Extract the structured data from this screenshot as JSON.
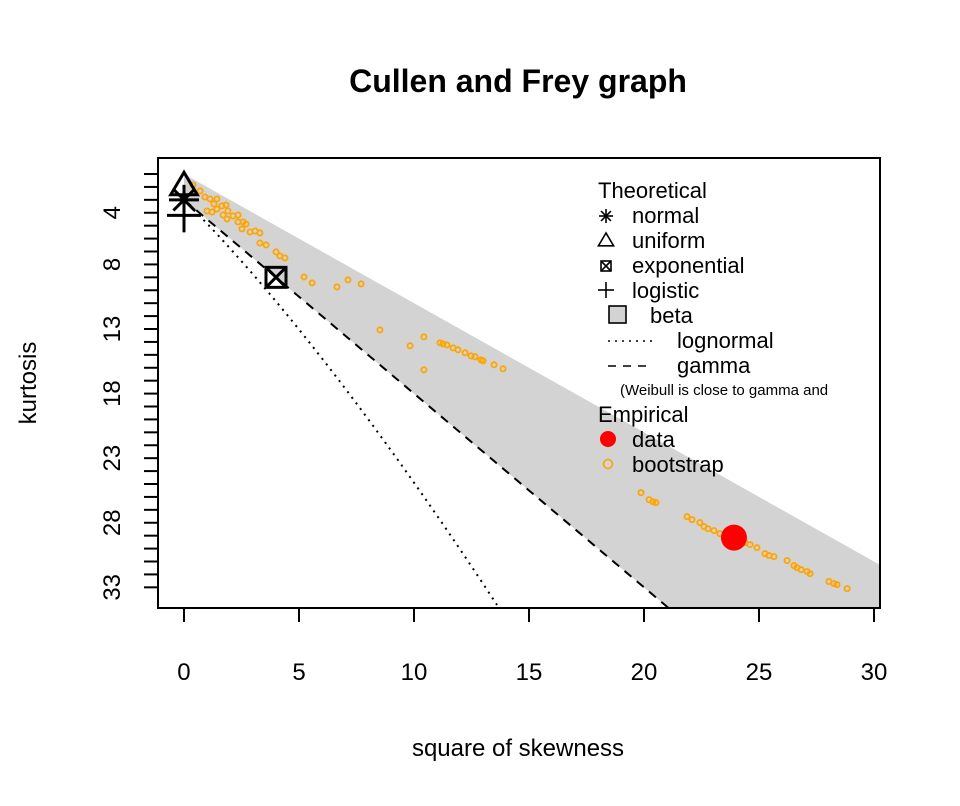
{
  "chart_data": {
    "type": "scatter",
    "title": "Cullen and Frey graph",
    "xlabel": "square of skewness",
    "ylabel": "kurtosis",
    "xlim": [
      -1.13,
      30.26
    ],
    "ylim": [
      34.6,
      -0.24
    ],
    "y_reversed": true,
    "xticks": [
      0,
      5,
      10,
      15,
      20,
      25,
      30
    ],
    "yticks_labeled": [
      4,
      8,
      13,
      18,
      23,
      28,
      33
    ],
    "ytick_minor_range": [
      1,
      33
    ],
    "grid": false,
    "legend_position": "top-right",
    "legend": {
      "theoretical_title": "Theoretical",
      "entries": {
        "normal": "normal",
        "uniform": "uniform",
        "exponential": "exponential",
        "logistic": "logistic",
        "beta": "beta",
        "lognormal": "lognormal",
        "gamma": "gamma"
      },
      "note": "(Weibull is close to gamma and",
      "empirical_title": "Empirical",
      "data": "data",
      "bootstrap": "bootstrap"
    },
    "theoretical_points": {
      "normal": [
        0,
        3
      ],
      "uniform": [
        0,
        1.8
      ],
      "exponential": [
        4,
        9
      ],
      "logistic": [
        0,
        4.2
      ]
    },
    "observed": [
      23.91,
      29.15
    ],
    "bootstrap": [
      [
        0.39,
        1.85
      ],
      [
        0.7,
        2.31
      ],
      [
        0.91,
        2.78
      ],
      [
        1.13,
        2.93
      ],
      [
        1.3,
        3.32
      ],
      [
        1.43,
        2.93
      ],
      [
        1.65,
        3.47
      ],
      [
        1.83,
        3.4
      ],
      [
        1.91,
        3.86
      ],
      [
        1.7,
        4.17
      ],
      [
        1.87,
        4.48
      ],
      [
        2.13,
        4.25
      ],
      [
        2.35,
        4.17
      ],
      [
        2.35,
        4.71
      ],
      [
        2.57,
        4.71
      ],
      [
        2.52,
        5.25
      ],
      [
        2.7,
        4.87
      ],
      [
        1.0,
        3.86
      ],
      [
        1.22,
        3.94
      ],
      [
        1.43,
        3.71
      ],
      [
        2.87,
        5.49
      ],
      [
        3.09,
        5.41
      ],
      [
        3.3,
        5.56
      ],
      [
        3.3,
        6.34
      ],
      [
        3.57,
        6.49
      ],
      [
        4.0,
        7.03
      ],
      [
        4.17,
        7.34
      ],
      [
        4.39,
        7.5
      ],
      [
        5.22,
        8.97
      ],
      [
        5.57,
        9.43
      ],
      [
        6.65,
        9.74
      ],
      [
        7.13,
        9.2
      ],
      [
        7.7,
        9.51
      ],
      [
        8.52,
        13.07
      ],
      [
        9.83,
        14.3
      ],
      [
        10.43,
        13.61
      ],
      [
        10.43,
        16.16
      ],
      [
        11.13,
        14.07
      ],
      [
        11.26,
        14.15
      ],
      [
        11.43,
        14.23
      ],
      [
        11.7,
        14.46
      ],
      [
        11.91,
        14.61
      ],
      [
        12.22,
        14.84
      ],
      [
        12.48,
        15.08
      ],
      [
        12.65,
        15.15
      ],
      [
        12.91,
        15.39
      ],
      [
        13.0,
        15.46
      ],
      [
        13.48,
        15.77
      ],
      [
        13.87,
        16.08
      ],
      [
        19.87,
        25.67
      ],
      [
        20.22,
        26.21
      ],
      [
        20.39,
        26.37
      ],
      [
        20.52,
        26.44
      ],
      [
        21.87,
        27.53
      ],
      [
        22.09,
        27.76
      ],
      [
        22.43,
        27.99
      ],
      [
        22.61,
        28.3
      ],
      [
        22.78,
        28.46
      ],
      [
        23.04,
        28.61
      ],
      [
        23.3,
        28.84
      ],
      [
        24.39,
        29.54
      ],
      [
        24.61,
        29.69
      ],
      [
        24.91,
        29.93
      ],
      [
        25.26,
        30.39
      ],
      [
        25.43,
        30.54
      ],
      [
        25.65,
        30.62
      ],
      [
        26.22,
        30.93
      ],
      [
        26.52,
        31.32
      ],
      [
        26.65,
        31.47
      ],
      [
        26.83,
        31.63
      ],
      [
        27.09,
        31.78
      ],
      [
        27.22,
        31.94
      ],
      [
        28.04,
        32.55
      ],
      [
        28.26,
        32.71
      ],
      [
        28.39,
        32.79
      ],
      [
        28.83,
        33.1
      ]
    ],
    "colors": {
      "beta_region": "#d3d3d3",
      "observed": "#ff0000",
      "bootstrap": "#ffa500",
      "lines": "#000000"
    }
  }
}
